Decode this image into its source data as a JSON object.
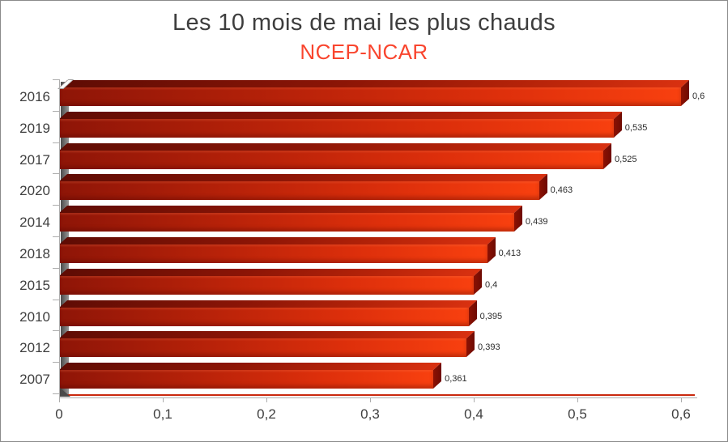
{
  "chart_data": {
    "type": "bar",
    "orientation": "horizontal",
    "title": "Les 10 mois de mai les plus chauds",
    "subtitle": "NCEP-NCAR",
    "categories": [
      "2016",
      "2019",
      "2017",
      "2020",
      "2014",
      "2018",
      "2015",
      "2010",
      "2012",
      "2007"
    ],
    "values": [
      0.6,
      0.535,
      0.525,
      0.463,
      0.439,
      0.413,
      0.4,
      0.395,
      0.393,
      0.361
    ],
    "value_labels": [
      "0,6",
      "0,535",
      "0,525",
      "0,463",
      "0,439",
      "0,413",
      "0,4",
      "0,395",
      "0,393",
      "0,361"
    ],
    "x_tick_values": [
      0,
      0.1,
      0.2,
      0.3,
      0.4,
      0.5,
      0.6
    ],
    "x_tick_labels": [
      "0",
      "0,1",
      "0,2",
      "0,3",
      "0,4",
      "0,5",
      "0,6"
    ],
    "xlim": [
      0,
      0.6
    ],
    "xlabel": "",
    "ylabel": "",
    "grid": false,
    "legend": false,
    "style": "3d-horizontal-bars"
  },
  "colors": {
    "title_text": "#3d3d3d",
    "subtitle_text": "#f9452e",
    "axis_label_text": "#3f3f3f",
    "value_label_text": "#2b2b2b",
    "axis_line": "#adadad",
    "bar_front_start": "#8e1507",
    "bar_front_mid1": "#bb2309",
    "bar_front_mid2": "#dd2f0b",
    "bar_front_end": "#f8400f",
    "bar_top_start": "#5f0c04",
    "bar_top_mid": "#8c1506",
    "bar_top_end": "#d93110",
    "bar_cap_light": "#8c1103",
    "bar_cap_dark": "#6e0b03",
    "wall_shadow_dark": "#4a4a4a",
    "wall_shadow_light": "#989898",
    "floor_line": "#c9290e",
    "wall_cap_fill": "#fbfbfb",
    "wall_cap_edge": "#9f9f9f"
  }
}
